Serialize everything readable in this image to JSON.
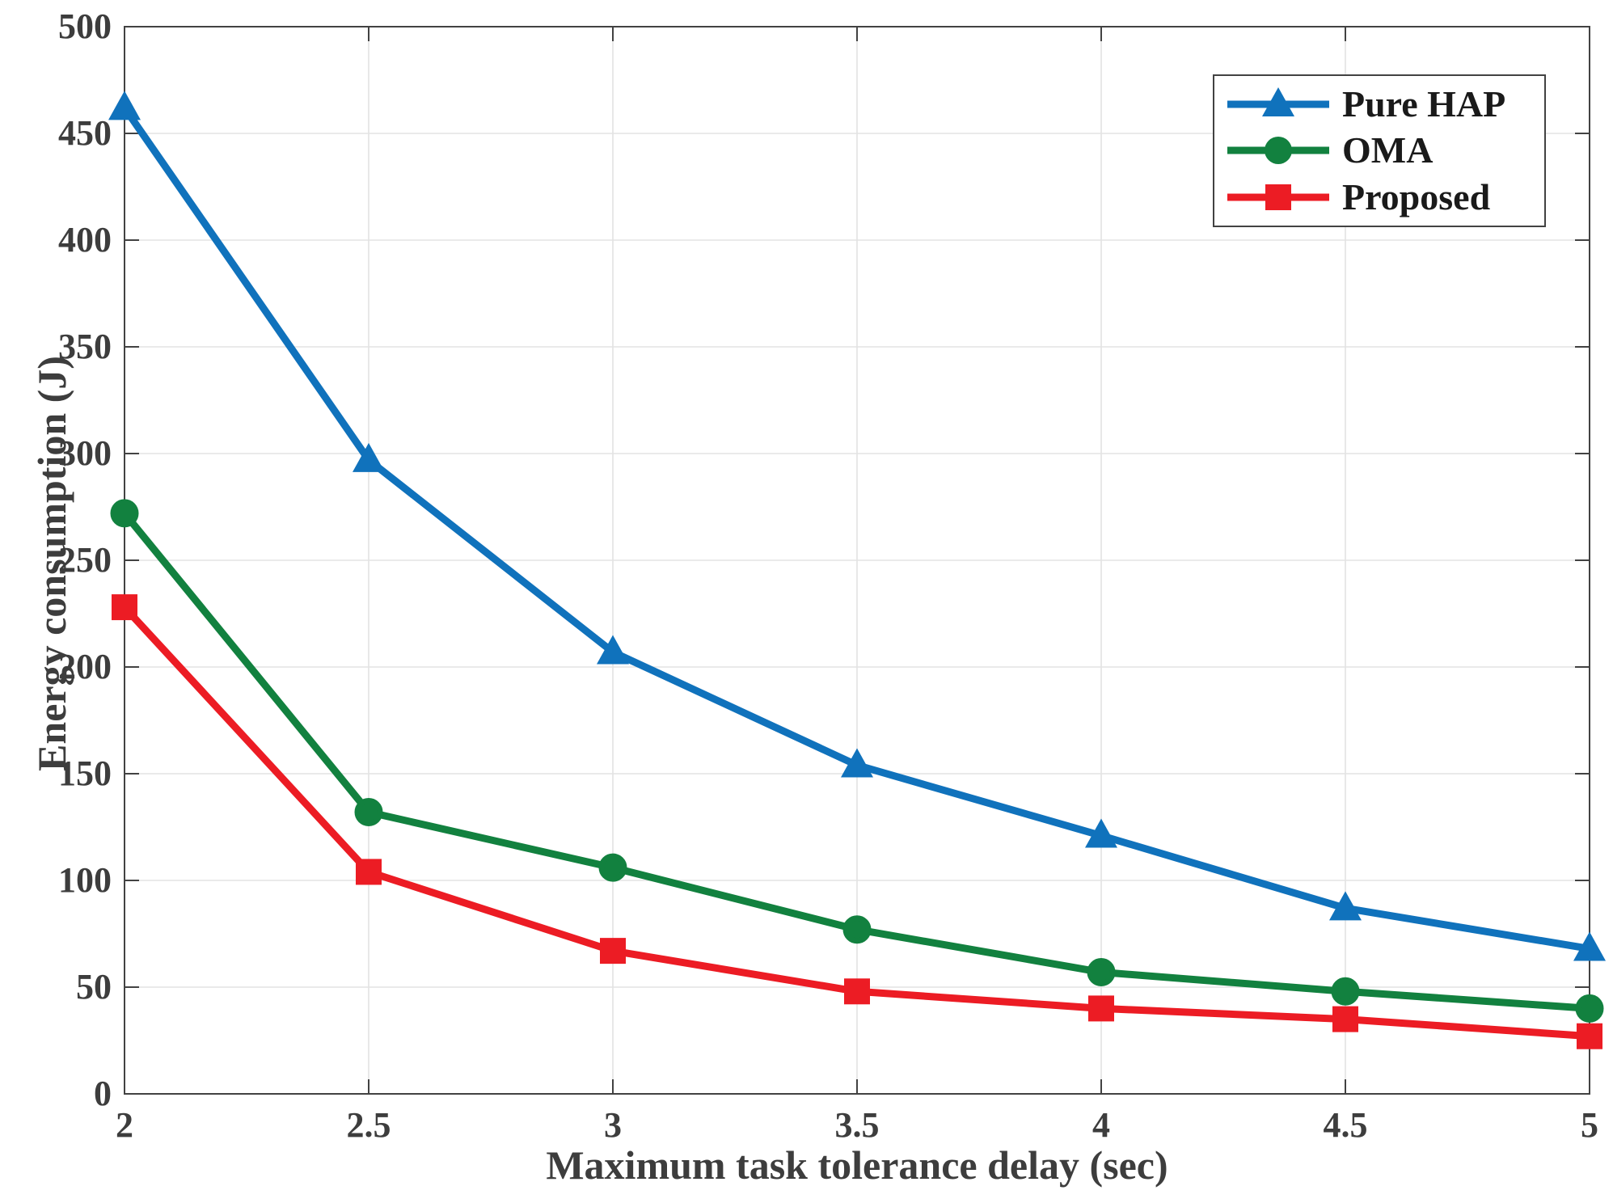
{
  "chart_data": {
    "type": "line",
    "title": "",
    "xlabel": "Maximum task tolerance delay (sec)",
    "ylabel": "Energy consumption (J)",
    "x": [
      2,
      2.5,
      3,
      3.5,
      4,
      4.5,
      5
    ],
    "xlim": [
      2,
      5
    ],
    "ylim": [
      0,
      500
    ],
    "xtick_labels": [
      "2",
      "2.5",
      "3",
      "3.5",
      "4",
      "4.5",
      "5"
    ],
    "ytick_values": [
      0,
      50,
      100,
      150,
      200,
      250,
      300,
      350,
      400,
      450,
      500
    ],
    "ytick_labels": [
      "0",
      "50",
      "100",
      "150",
      "200",
      "250",
      "300",
      "350",
      "400",
      "450",
      "500"
    ],
    "grid": true,
    "legend_position": "top-right",
    "series": [
      {
        "name": "Pure HAP",
        "color": "#1072BC",
        "marker": "triangle",
        "values": [
          462,
          297,
          207,
          154,
          121,
          87,
          68
        ]
      },
      {
        "name": "OMA",
        "color": "#12813F",
        "marker": "circle",
        "values": [
          272,
          132,
          106,
          77,
          57,
          48,
          40
        ]
      },
      {
        "name": "Proposed",
        "color": "#EC1C24",
        "marker": "square",
        "values": [
          228,
          104,
          67,
          48,
          40,
          35,
          27
        ]
      }
    ],
    "colors": {
      "grid": "#E3E3E3",
      "frame": "#424242",
      "tick_text": "#3d3d3d",
      "legend_text": "#1a1a1a",
      "background": "#ffffff"
    }
  }
}
